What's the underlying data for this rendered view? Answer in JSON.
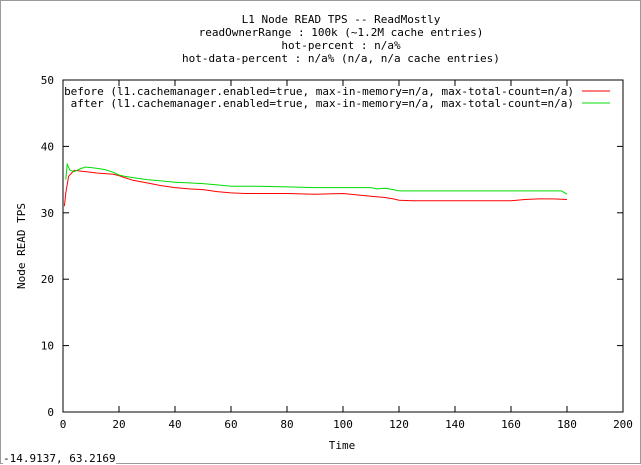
{
  "chart_data": {
    "type": "line",
    "title_lines": [
      "L1 Node READ TPS -- ReadMostly",
      "readOwnerRange : 100k (~1.2M cache entries)",
      "hot-percent : n/a%",
      "hot-data-percent : n/a% (n/a, n/a cache entries)"
    ],
    "xlabel": "Time",
    "ylabel": "Node READ TPS",
    "xlim": [
      0,
      200
    ],
    "ylim": [
      0,
      50
    ],
    "x_ticks": [
      0,
      20,
      40,
      60,
      80,
      100,
      120,
      140,
      160,
      180,
      200
    ],
    "y_ticks": [
      0,
      10,
      20,
      30,
      40,
      50
    ],
    "legend_position": "top-right",
    "grid": false,
    "series": [
      {
        "name": "before (l1.cachemanager.enabled=true, max-in-memory=n/a, max-total-count=n/a)",
        "color": "#ff0000",
        "points": [
          [
            0.5,
            31
          ],
          [
            1,
            33
          ],
          [
            2,
            35.5
          ],
          [
            4,
            36.4
          ],
          [
            6,
            36.3
          ],
          [
            8,
            36.2
          ],
          [
            10,
            36.1
          ],
          [
            12,
            36
          ],
          [
            15,
            35.9
          ],
          [
            18,
            35.8
          ],
          [
            20,
            35.6
          ],
          [
            22,
            35.3
          ],
          [
            25,
            34.9
          ],
          [
            30,
            34.5
          ],
          [
            35,
            34.1
          ],
          [
            40,
            33.8
          ],
          [
            45,
            33.6
          ],
          [
            50,
            33.5
          ],
          [
            55,
            33.2
          ],
          [
            60,
            33.0
          ],
          [
            65,
            32.9
          ],
          [
            70,
            32.9
          ],
          [
            80,
            32.9
          ],
          [
            90,
            32.8
          ],
          [
            100,
            32.9
          ],
          [
            105,
            32.7
          ],
          [
            110,
            32.5
          ],
          [
            115,
            32.3
          ],
          [
            118,
            32.1
          ],
          [
            120,
            31.9
          ],
          [
            125,
            31.8
          ],
          [
            130,
            31.8
          ],
          [
            140,
            31.8
          ],
          [
            150,
            31.8
          ],
          [
            160,
            31.8
          ],
          [
            165,
            32.0
          ],
          [
            170,
            32.1
          ],
          [
            175,
            32.1
          ],
          [
            180,
            32.0
          ]
        ]
      },
      {
        "name": "after (l1.cachemanager.enabled=true, max-in-memory=n/a, max-total-count=n/a)",
        "color": "#00dd00",
        "points": [
          [
            1,
            35
          ],
          [
            1.5,
            37.3
          ],
          [
            2.5,
            36.4
          ],
          [
            4,
            36.2
          ],
          [
            6,
            36.6
          ],
          [
            8,
            36.9
          ],
          [
            10,
            36.8
          ],
          [
            12,
            36.7
          ],
          [
            15,
            36.5
          ],
          [
            18,
            36.1
          ],
          [
            20,
            35.7
          ],
          [
            22,
            35.5
          ],
          [
            25,
            35.3
          ],
          [
            30,
            35.0
          ],
          [
            35,
            34.8
          ],
          [
            40,
            34.6
          ],
          [
            45,
            34.5
          ],
          [
            50,
            34.4
          ],
          [
            55,
            34.2
          ],
          [
            60,
            34.0
          ],
          [
            70,
            34.0
          ],
          [
            80,
            33.9
          ],
          [
            90,
            33.8
          ],
          [
            100,
            33.8
          ],
          [
            105,
            33.8
          ],
          [
            110,
            33.8
          ],
          [
            112,
            33.6
          ],
          [
            115,
            33.7
          ],
          [
            118,
            33.5
          ],
          [
            120,
            33.3
          ],
          [
            130,
            33.3
          ],
          [
            140,
            33.3
          ],
          [
            150,
            33.3
          ],
          [
            160,
            33.3
          ],
          [
            170,
            33.3
          ],
          [
            178,
            33.3
          ],
          [
            180,
            32.8
          ]
        ]
      }
    ]
  },
  "status_text": "-14.9137,  63.2169"
}
